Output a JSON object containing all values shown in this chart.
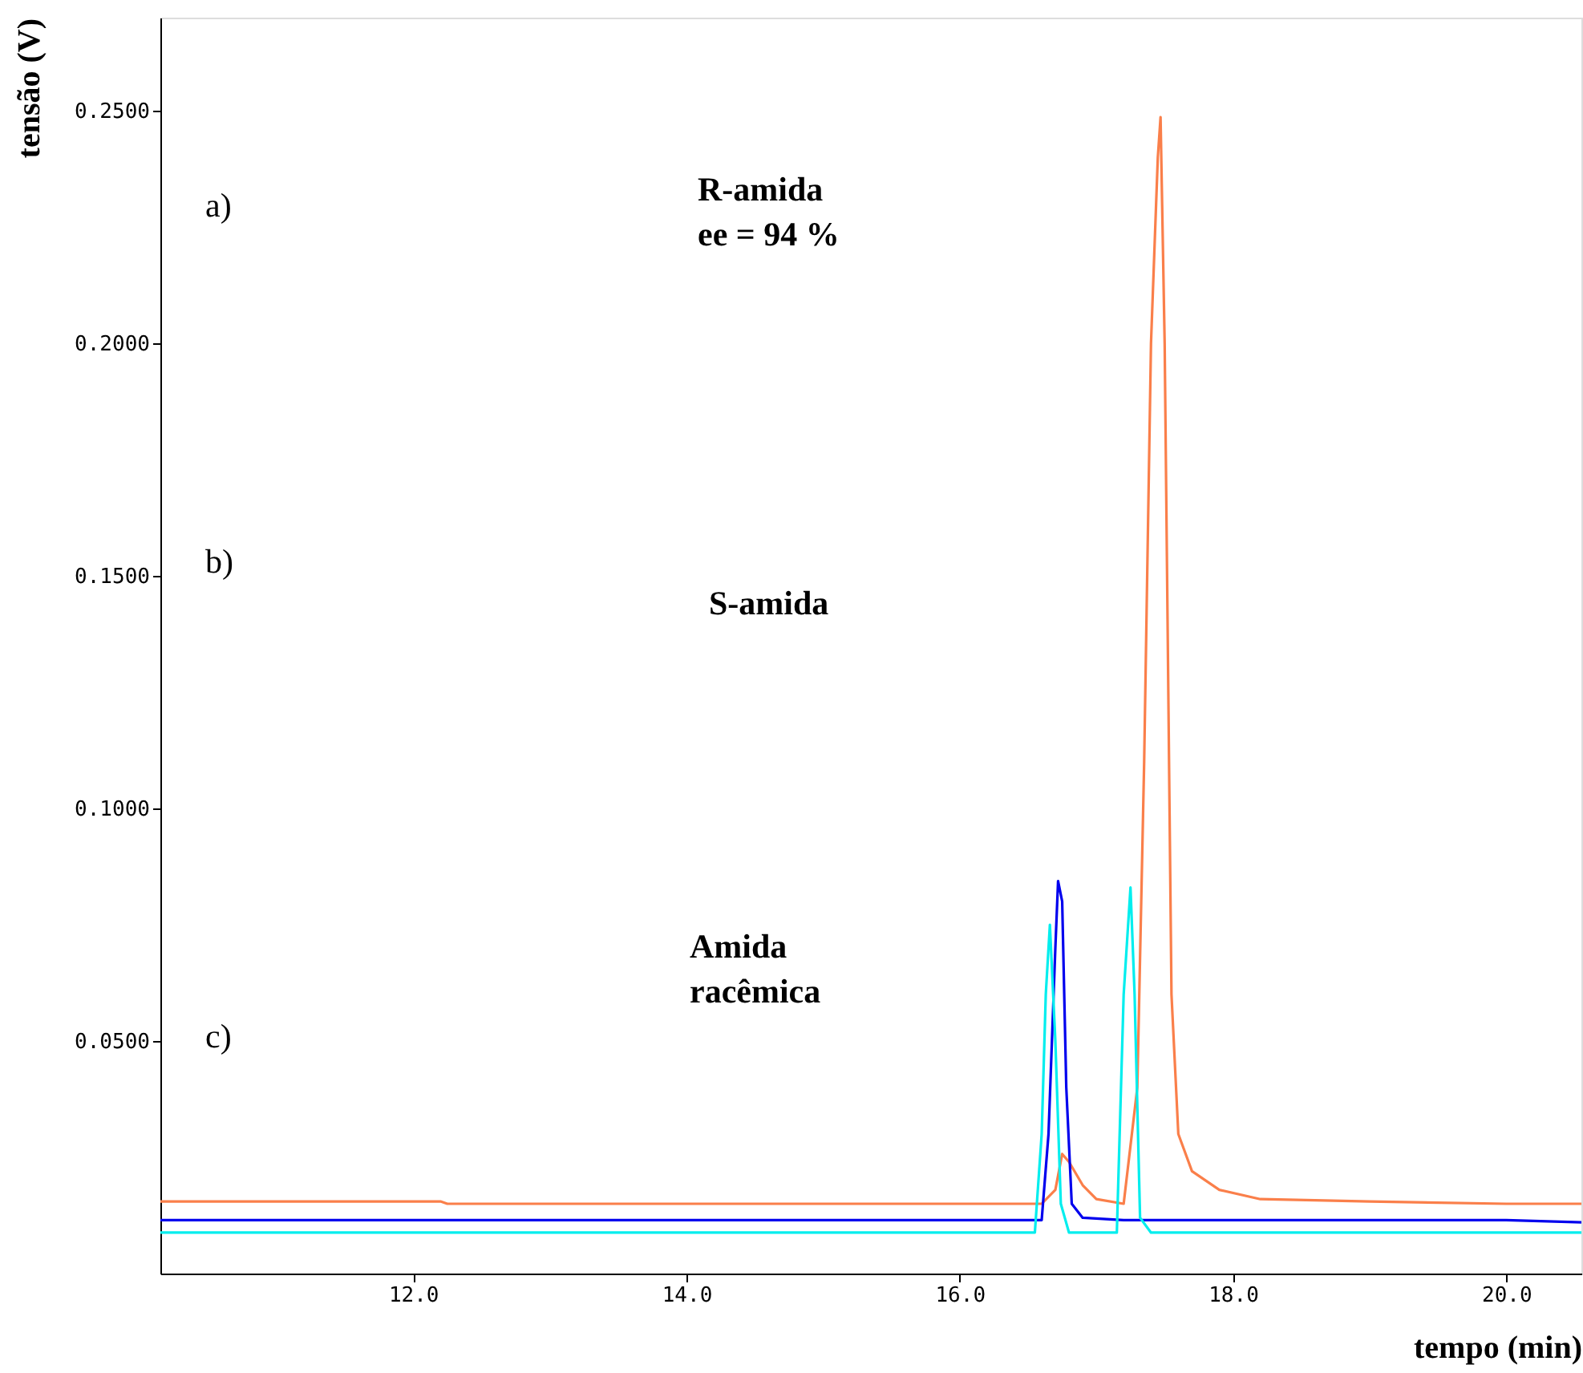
{
  "chart_data": {
    "type": "line",
    "xlabel": "tempo (min)",
    "ylabel": "tensão (V)",
    "xlim": [
      10.15,
      20.55
    ],
    "ylim": [
      0,
      0.27
    ],
    "xticks": [
      {
        "value": 12,
        "label": "12.0"
      },
      {
        "value": 14,
        "label": "14.0"
      },
      {
        "value": 16,
        "label": "16.0"
      },
      {
        "value": 18,
        "label": "18.0"
      },
      {
        "value": 20,
        "label": "20.0"
      }
    ],
    "yticks": [
      {
        "value": 0.05,
        "label": "0.0500"
      },
      {
        "value": 0.1,
        "label": "0.1000"
      },
      {
        "value": 0.15,
        "label": "0.1500"
      },
      {
        "value": 0.2,
        "label": "0.2000"
      },
      {
        "value": 0.25,
        "label": "0.2500"
      }
    ],
    "grid": false,
    "legend": false,
    "marker": "none",
    "line_style": "solid",
    "annotations": [
      "a)",
      "R-amida\nee = 94 %",
      "b)",
      "S-amida",
      "c)",
      "Amida\nracêmica"
    ],
    "series": [
      {
        "color": "#fa7f4a",
        "x": [
          10.15,
          12.2,
          12.25,
          16.6,
          16.7,
          16.75,
          16.8,
          16.9,
          17.0,
          17.2,
          17.3,
          17.35,
          17.4,
          17.45,
          17.47,
          17.5,
          17.55,
          17.6,
          17.7,
          17.9,
          18.2,
          19.0,
          20.0,
          20.55
        ],
        "values": [
          0.0155,
          0.0155,
          0.015,
          0.015,
          0.018,
          0.0257,
          0.024,
          0.019,
          0.016,
          0.015,
          0.04,
          0.11,
          0.2,
          0.24,
          0.2486,
          0.2,
          0.06,
          0.03,
          0.022,
          0.018,
          0.016,
          0.0155,
          0.015,
          0.015
        ]
      },
      {
        "color": "#0000ee",
        "x": [
          10.15,
          16.6,
          16.65,
          16.7,
          16.72,
          16.75,
          16.78,
          16.82,
          16.9,
          17.2,
          18.0,
          20.0,
          20.55
        ],
        "values": [
          0.0115,
          0.0115,
          0.03,
          0.07,
          0.0844,
          0.08,
          0.04,
          0.015,
          0.012,
          0.0115,
          0.0115,
          0.0115,
          0.011
        ]
      },
      {
        "color": "#00eeee",
        "x": [
          10.15,
          16.55,
          16.6,
          16.63,
          16.66,
          16.7,
          16.74,
          16.8,
          17.15,
          17.2,
          17.25,
          17.28,
          17.32,
          17.4,
          20.55
        ],
        "values": [
          0.0088,
          0.0088,
          0.03,
          0.06,
          0.075,
          0.05,
          0.015,
          0.0088,
          0.0088,
          0.06,
          0.083,
          0.06,
          0.012,
          0.0088,
          0.0088
        ]
      }
    ]
  }
}
